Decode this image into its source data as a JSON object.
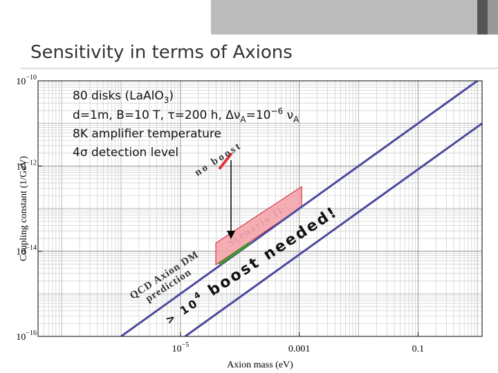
{
  "title": "Sensitivity in terms of Axions",
  "chart_data": {
    "type": "line",
    "x_label": "Axion mass (eV)",
    "y_label": "Coupling constant (1/GeV)",
    "xlim": [
      4e-08,
      1.2
    ],
    "ylim": [
      1e-16,
      1e-10
    ],
    "log_x": true,
    "log_y": true,
    "grid": true,
    "xticks": [
      {
        "value": 1e-05,
        "label": "10",
        "exponent": "−5"
      },
      0.001,
      0.1
    ],
    "yticks": [
      {
        "value": 1e-10,
        "label": "10",
        "exponent": "−10"
      },
      {
        "value": 1e-12,
        "label": "10",
        "exponent": "−12"
      },
      {
        "value": 1e-14,
        "label": "10",
        "exponent": "−14"
      },
      {
        "value": 1e-16,
        "label": "10",
        "exponent": "−16"
      }
    ],
    "series": [
      {
        "color": "#4b4a9c",
        "x": [
          1e-06,
          1.2
        ],
        "values": [
          1e-16,
          1.2e-10
        ]
      },
      {
        "color": "#4b4a9c",
        "x": [
          1.2e-05,
          1.2
        ],
        "values": [
          1e-16,
          1e-11
        ]
      },
      {
        "color": "#3c9a2c",
        "x": [
          4.5e-05,
          0.000147
        ],
        "values": [
          4.9e-15,
          1.55e-14
        ]
      },
      {
        "color": "#e0303a",
        "x": [
          4.5e-05,
          7.3e-05
        ],
        "values": [
          8.5e-13,
          2e-12
        ]
      }
    ],
    "regions": [
      {
        "color": "#f4a0a8",
        "x": [
          3.94e-05,
          3.94e-05,
          0.0011,
          0.0011
        ],
        "values": [
          4.8e-15,
          1.55e-14,
          3.3e-13,
          1.1e-13
        ]
      }
    ],
    "annotations": {
      "line1": [
        "80 disks (LaAlO",
        "3",
        ")"
      ],
      "line2": [
        "d=1m, B=10 T, τ=200 h, Δν",
        "A",
        "=10",
        "−6",
        " ν",
        "A"
      ],
      "line3": "8K amplifier temperature",
      "line4": "4σ detection level",
      "no_boost": "no boost",
      "scenario": "Scenario II",
      "qcd1": "QCD Axion DM",
      "qcd2": "prediction",
      "boost": [
        "> 10",
        "4",
        " boost needed!"
      ]
    }
  }
}
